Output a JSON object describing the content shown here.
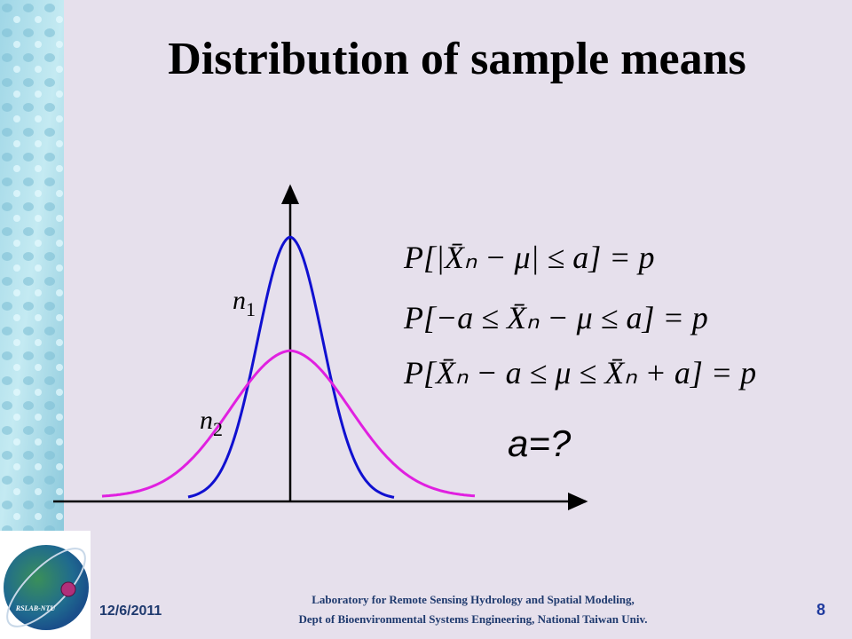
{
  "header": {
    "title": "Distribution of sample means"
  },
  "figure": {
    "curve_labels": [
      {
        "symbol": "n",
        "subscript": "1"
      },
      {
        "symbol": "n",
        "subscript": "2"
      }
    ],
    "equations": [
      "P[|X̄ₙ − μ| ≤ a] = p",
      "P[−a ≤ X̄ₙ − μ ≤ a] = p",
      "P[X̄ₙ − a ≤ μ ≤ X̄ₙ + a] = p"
    ],
    "question": "a=?"
  },
  "logo": {
    "text": "RSLAB-NTU"
  },
  "footer": {
    "date": "12/6/2011",
    "lines": [
      "Laboratory for Remote Sensing Hydrology and Spatial Modeling,",
      "Dept of Bioenvironmental Systems Engineering, National Taiwan Univ."
    ],
    "page": "8"
  }
}
